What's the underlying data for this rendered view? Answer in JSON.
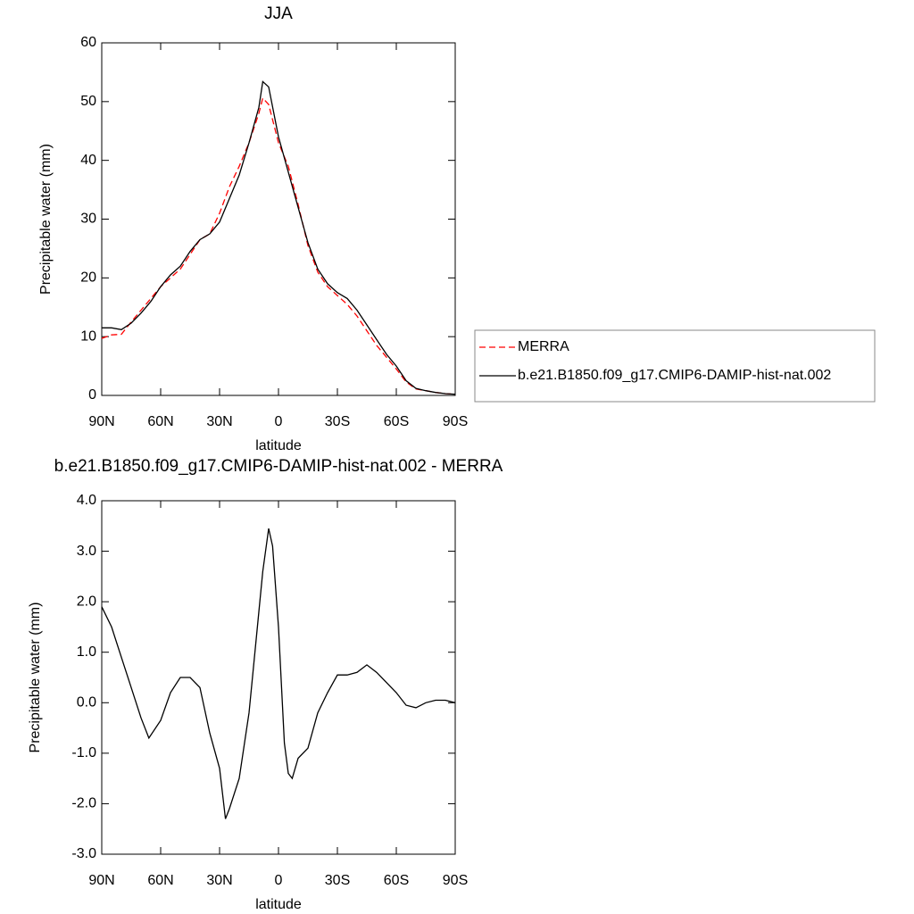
{
  "chart_data": [
    {
      "type": "line",
      "title": "JJA",
      "xlabel": "latitude",
      "ylabel": "Precipitable water (mm)",
      "x": [
        90,
        85,
        80,
        75,
        70,
        65,
        60,
        55,
        50,
        45,
        40,
        35,
        30,
        25,
        20,
        15,
        10,
        8,
        5,
        0,
        -5,
        -10,
        -15,
        -20,
        -25,
        -30,
        -35,
        -40,
        -45,
        -50,
        -55,
        -60,
        -65,
        -70,
        -75,
        -80,
        -85,
        -90
      ],
      "series": [
        {
          "name": "MERRA",
          "color": "#ff0000",
          "dashed": true,
          "values": [
            9.7,
            10.3,
            10.4,
            12.5,
            14.5,
            16.5,
            18.5,
            20,
            21.5,
            24,
            26.5,
            27.5,
            31,
            35.5,
            39,
            43,
            48,
            50.6,
            49.5,
            43,
            39,
            32.5,
            25.5,
            21,
            18.5,
            17,
            15.5,
            13.5,
            11,
            8.5,
            6.5,
            4.5,
            2.3,
            1.1,
            0.8,
            0.5,
            0.3,
            0.2
          ]
        },
        {
          "name": "b.e21.B1850.f09_g17.CMIP6-DAMIP-hist-nat.002",
          "color": "#000000",
          "dashed": false,
          "values": [
            11.5,
            11.5,
            11.2,
            12.3,
            14,
            16,
            18.5,
            20.5,
            22,
            24.5,
            26.5,
            27.5,
            29.5,
            33.5,
            37.5,
            43,
            49,
            53.4,
            52.5,
            44,
            38,
            32,
            26,
            21.5,
            19,
            17.5,
            16.5,
            14.5,
            12,
            9.5,
            7,
            5,
            2.5,
            1.2,
            0.8,
            0.5,
            0.3,
            0.2
          ]
        }
      ],
      "xlim": [
        90,
        -90
      ],
      "xticks": [
        {
          "value": 90,
          "label": "90N"
        },
        {
          "value": 60,
          "label": "60N"
        },
        {
          "value": 30,
          "label": "30N"
        },
        0,
        {
          "value": -30,
          "label": "30S"
        },
        {
          "value": -60,
          "label": "60S"
        },
        {
          "value": -90,
          "label": "90S"
        }
      ],
      "ylim": [
        0,
        60
      ],
      "yticks": [
        0,
        10,
        20,
        30,
        40,
        50,
        60
      ],
      "legend": "right"
    },
    {
      "type": "line",
      "title": "b.e21.B1850.f09_g17.CMIP6-DAMIP-hist-nat.002 - MERRA",
      "xlabel": "latitude",
      "ylabel": "Precipitable water (mm)",
      "x": [
        90,
        85,
        80,
        75,
        70,
        66,
        60,
        55,
        50,
        45,
        40,
        35,
        30,
        27,
        25,
        20,
        15,
        10,
        8,
        5,
        3,
        0,
        -3,
        -5,
        -7,
        -10,
        -15,
        -20,
        -25,
        -30,
        -35,
        -40,
        -45,
        -50,
        -55,
        -60,
        -65,
        -70,
        -75,
        -80,
        -85,
        -90
      ],
      "values": [
        1.9,
        1.5,
        0.9,
        0.3,
        -0.3,
        -0.7,
        -0.35,
        0.2,
        0.5,
        0.5,
        0.3,
        -0.6,
        -1.3,
        -2.3,
        -2.1,
        -1.5,
        -0.2,
        1.8,
        2.6,
        3.45,
        3.1,
        1.5,
        -0.8,
        -1.4,
        -1.5,
        -1.1,
        -0.9,
        -0.2,
        0.2,
        0.55,
        0.55,
        0.6,
        0.75,
        0.6,
        0.4,
        0.2,
        -0.05,
        -0.1,
        0,
        0.05,
        0.05,
        0
      ],
      "color": "#000000",
      "xlim": [
        90,
        -90
      ],
      "xticks": [
        {
          "value": 90,
          "label": "90N"
        },
        {
          "value": 60,
          "label": "60N"
        },
        {
          "value": 30,
          "label": "30N"
        },
        0,
        {
          "value": -30,
          "label": "30S"
        },
        {
          "value": -60,
          "label": "60S"
        },
        {
          "value": -90,
          "label": "90S"
        }
      ],
      "ylim": [
        -3,
        4
      ],
      "yticks": [
        {
          "value": -3,
          "label": "-3.0"
        },
        {
          "value": -2,
          "label": "-2.0"
        },
        {
          "value": -1,
          "label": "-1.0"
        },
        {
          "value": 0,
          "label": "0.0"
        },
        {
          "value": 1,
          "label": "1.0"
        },
        {
          "value": 2,
          "label": "2.0"
        },
        {
          "value": 3,
          "label": "3.0"
        },
        {
          "value": 4,
          "label": "4.0"
        }
      ]
    }
  ]
}
